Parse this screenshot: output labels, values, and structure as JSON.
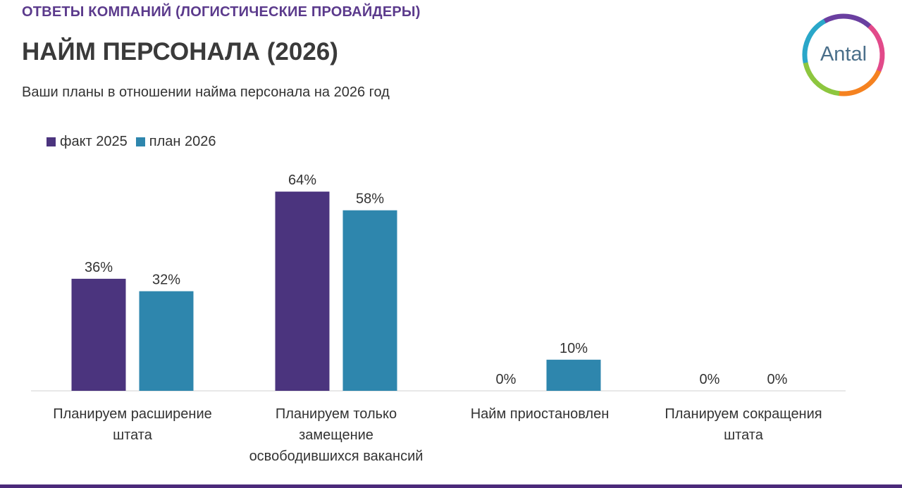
{
  "header": {
    "section_title": "ОТВЕТЫ КОМПАНИЙ (ЛОГИСТИЧЕСКИЕ ПРОВАЙДЕРЫ)",
    "title": "НАЙМ ПЕРСОНАЛА (2026)",
    "subtitle": "Ваши планы в отношении найма персонала на 2026 год"
  },
  "logo": {
    "text": "Antal",
    "colors": [
      "#6a3fa0",
      "#e24a8a",
      "#f58220",
      "#8dc63f",
      "#2aa7c9"
    ]
  },
  "colors": {
    "fact_2025": "#4b347e",
    "plan_2026": "#2e86ad",
    "axis": "#d9d9d9",
    "accent_bar": "#4b2a7a"
  },
  "chart_data": {
    "type": "bar",
    "categories": [
      [
        "Планируем расширение",
        "штата"
      ],
      [
        "Планируем только",
        "замещение",
        "освободившихся вакансий"
      ],
      [
        "Найм приостановлен"
      ],
      [
        "Планируем сокращения",
        "штата"
      ]
    ],
    "series": [
      {
        "name": "факт 2025",
        "values": [
          36,
          64,
          0,
          0
        ],
        "labels": [
          "36%",
          "64%",
          "0%",
          "0%"
        ]
      },
      {
        "name": "план 2026",
        "values": [
          32,
          58,
          10,
          0
        ],
        "labels": [
          "32%",
          "58%",
          "10%",
          "0%"
        ]
      }
    ],
    "unit": "%",
    "grid": false,
    "legend": "top-left"
  }
}
